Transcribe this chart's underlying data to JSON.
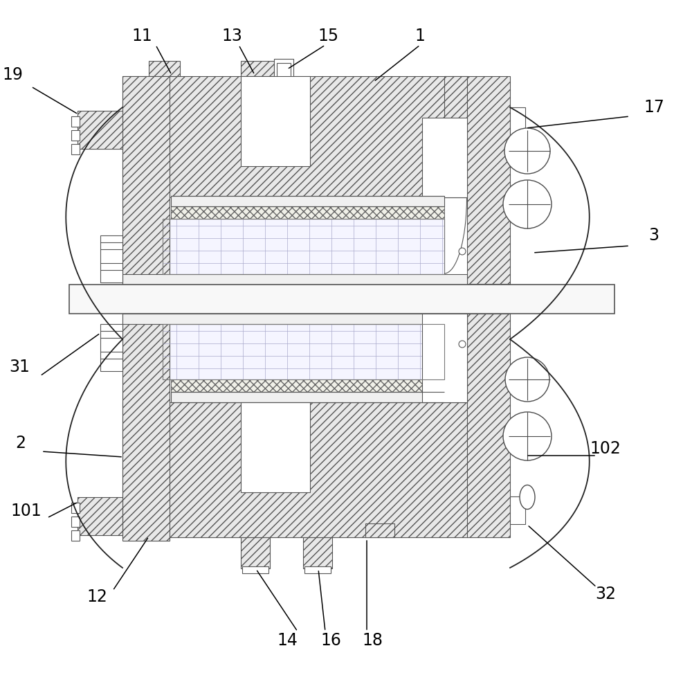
{
  "background": "#ffffff",
  "lc": "#4a4a4a",
  "hatch_fc": "#e8e8e8",
  "hatch_ec": "#555555",
  "plus_fc": "#f5f5ff",
  "plus_ec": "#777777",
  "cross_fc": "#f0f0e8",
  "cross_ec": "#666666",
  "white": "#ffffff",
  "rod_fc": "#f8f8f8",
  "fig_w": 10.0,
  "fig_h": 9.72,
  "dpi": 100
}
